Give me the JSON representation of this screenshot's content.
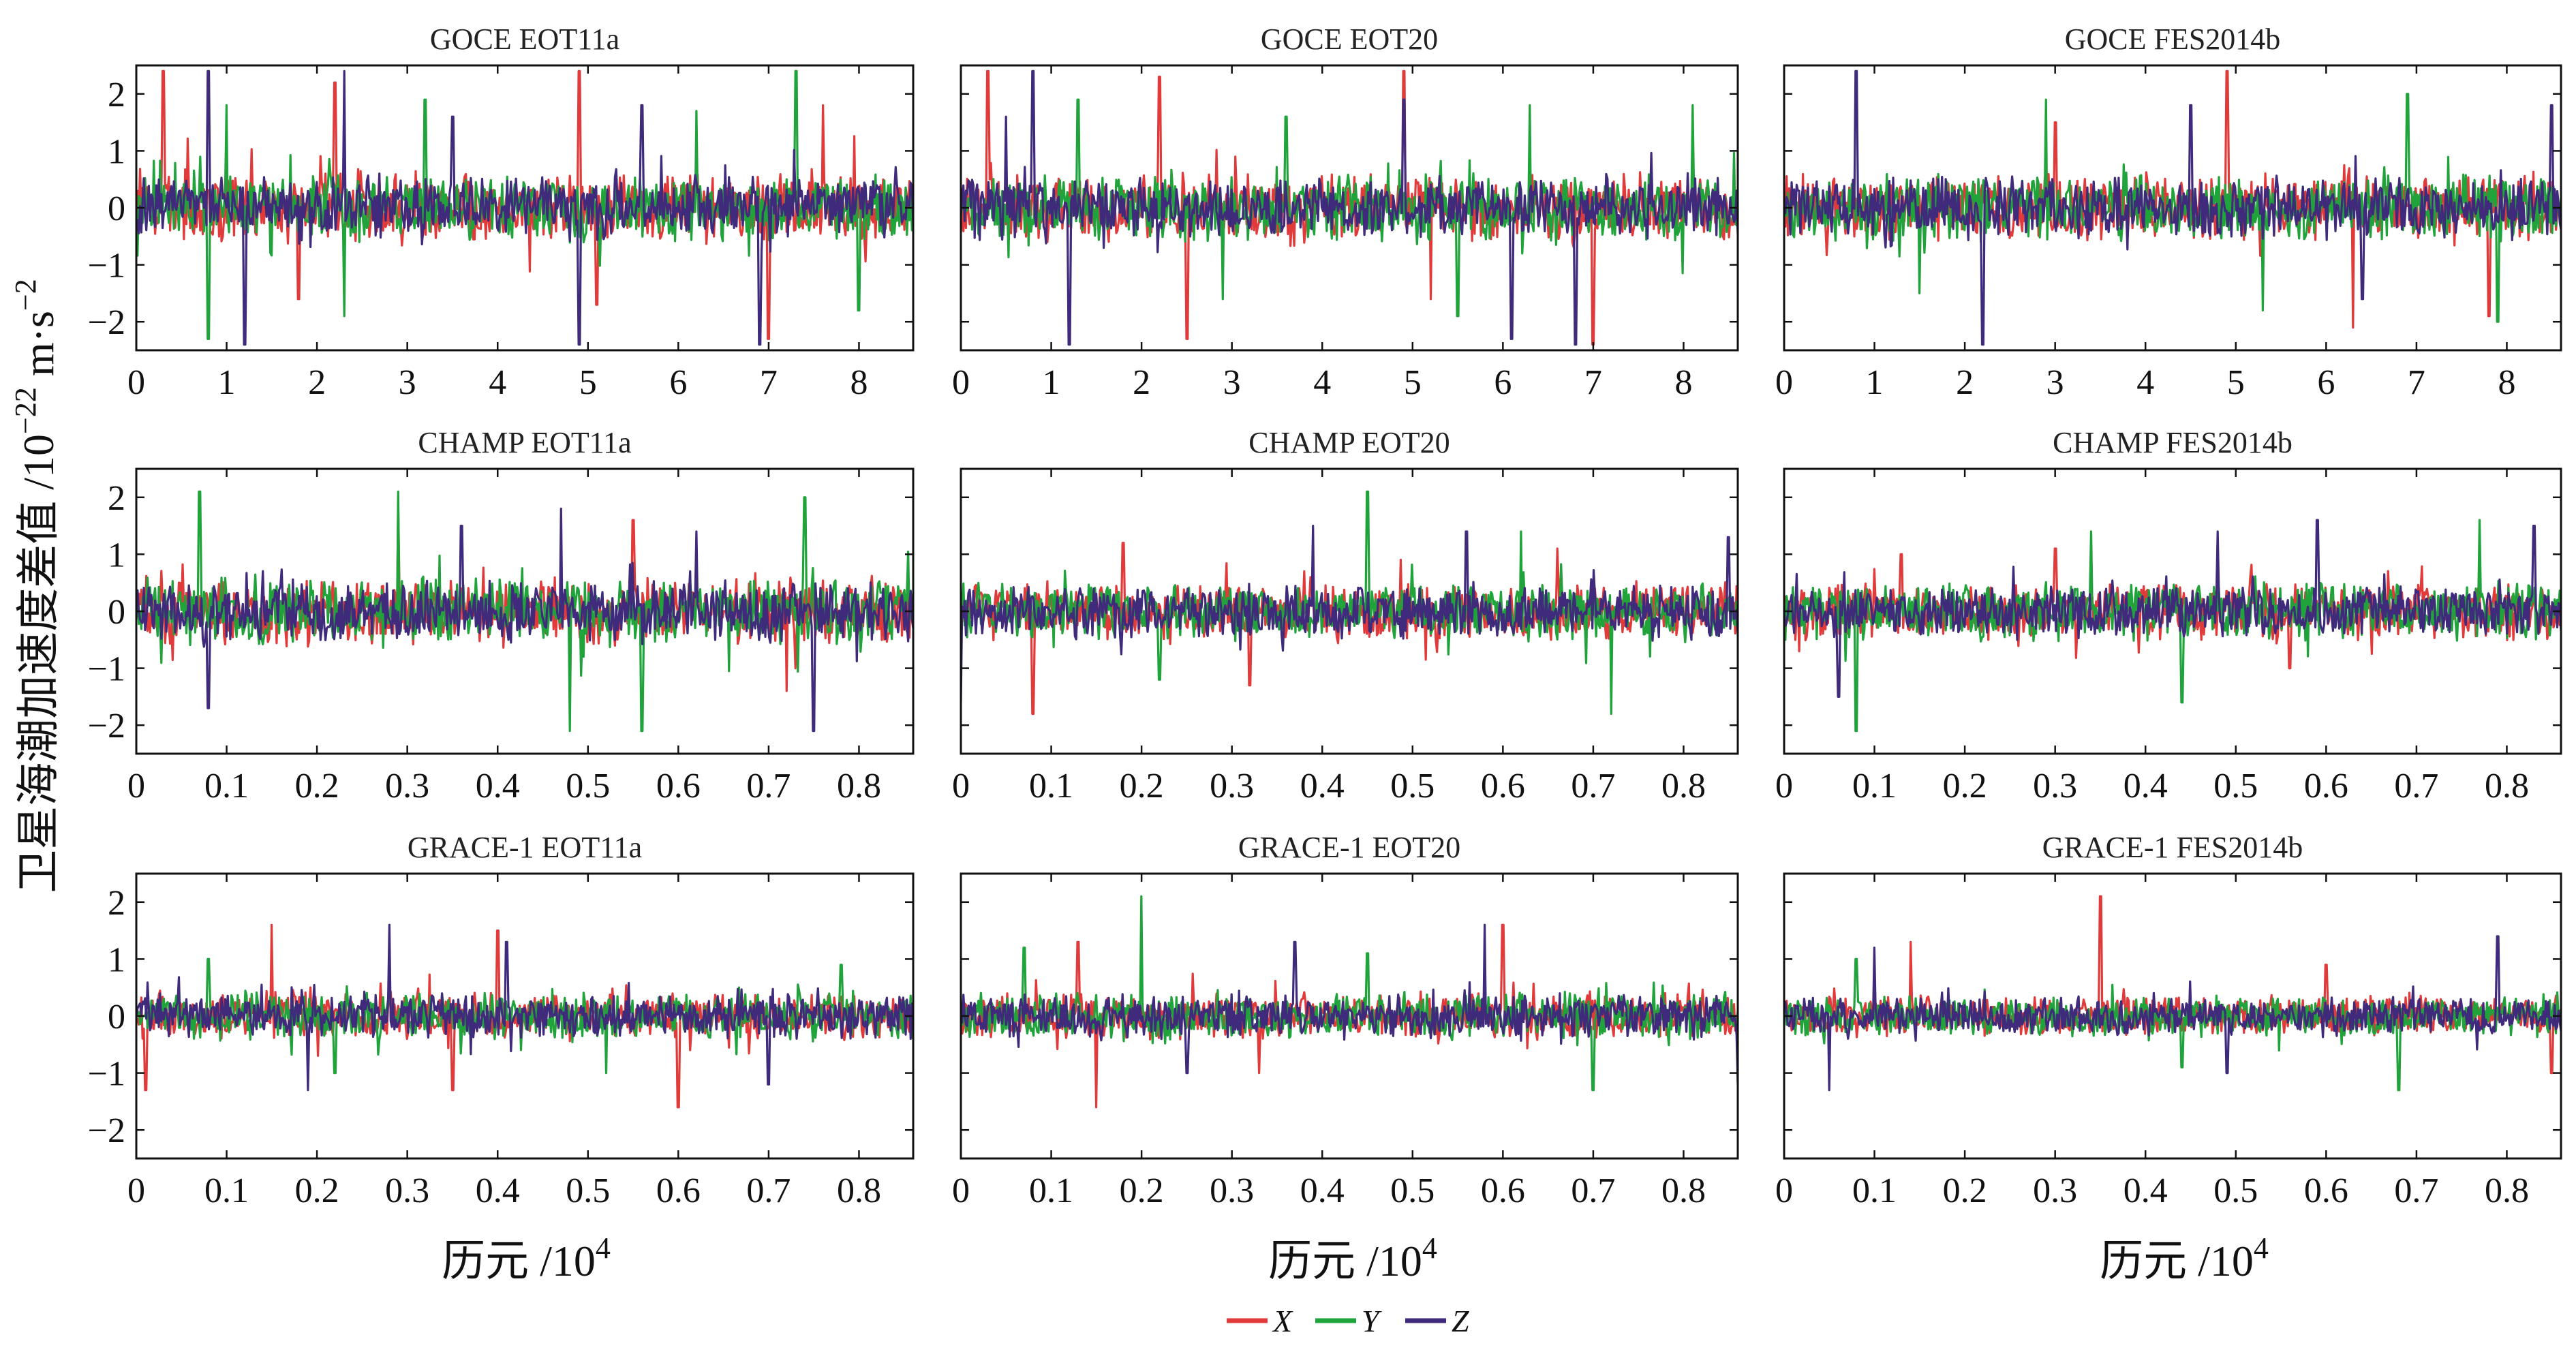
{
  "colors": {
    "X": "#e03a3a",
    "Y": "#1fa33a",
    "Z": "#3f2a7c"
  },
  "ylabel_text": "卫星海潮加速度差值 /10",
  "ylabel_exp": "−22",
  "ylabel_unit": "m·s",
  "ylabel_unit_exp": "−2",
  "xlabel_text": "历元 /10",
  "xlabel_exp": "4",
  "legend": [
    {
      "key": "X",
      "label": "X"
    },
    {
      "key": "Y",
      "label": "Y"
    },
    {
      "key": "Z",
      "label": "Z"
    }
  ],
  "chart_data": [
    {
      "type": "line",
      "title": "GOCE EOT11a",
      "xlim": [
        0,
        8.6
      ],
      "xticks": [
        "0",
        "1",
        "2",
        "3",
        "4",
        "5",
        "6",
        "7",
        "8"
      ],
      "ylim": [
        -2.5,
        2.5
      ],
      "yticks": [
        "−2",
        "−1",
        "0",
        "1",
        "2"
      ],
      "series": [
        {
          "name": "X",
          "noise": 0.55,
          "spikes": [
            [
              0.3,
              2.4
            ],
            [
              2.2,
              2.2
            ],
            [
              4.9,
              2.4
            ],
            [
              7.0,
              -2.3
            ],
            [
              7.6,
              1.8
            ],
            [
              1.8,
              -1.6
            ],
            [
              5.1,
              -1.7
            ]
          ]
        },
        {
          "name": "Y",
          "noise": 0.5,
          "spikes": [
            [
              0.8,
              -2.3
            ],
            [
              1.0,
              1.8
            ],
            [
              3.2,
              1.9
            ],
            [
              7.3,
              2.4
            ],
            [
              8.0,
              -1.8
            ],
            [
              2.3,
              -1.9
            ],
            [
              6.2,
              1.7
            ]
          ]
        },
        {
          "name": "Z",
          "noise": 0.45,
          "spikes": [
            [
              0.8,
              2.4
            ],
            [
              1.2,
              -2.4
            ],
            [
              2.3,
              2.4
            ],
            [
              4.9,
              -2.4
            ],
            [
              6.9,
              -2.4
            ],
            [
              3.5,
              1.6
            ],
            [
              5.6,
              1.8
            ]
          ]
        }
      ]
    },
    {
      "type": "line",
      "title": "GOCE EOT20",
      "xlim": [
        0,
        8.6
      ],
      "xticks": [
        "0",
        "1",
        "2",
        "3",
        "4",
        "5",
        "6",
        "7",
        "8"
      ],
      "ylim": [
        -2.5,
        2.5
      ],
      "yticks": [
        "−2",
        "−1",
        "0",
        "1",
        "2"
      ],
      "series": [
        {
          "name": "X",
          "noise": 0.5,
          "spikes": [
            [
              0.3,
              2.4
            ],
            [
              2.2,
              2.3
            ],
            [
              2.5,
              -2.3
            ],
            [
              4.9,
              2.4
            ],
            [
              7.0,
              -2.4
            ],
            [
              5.2,
              -1.6
            ]
          ]
        },
        {
          "name": "Y",
          "noise": 0.5,
          "spikes": [
            [
              1.3,
              1.9
            ],
            [
              3.6,
              1.6
            ],
            [
              5.5,
              -1.9
            ],
            [
              6.3,
              1.8
            ],
            [
              8.1,
              1.8
            ],
            [
              2.9,
              -1.6
            ]
          ]
        },
        {
          "name": "Z",
          "noise": 0.45,
          "spikes": [
            [
              0.8,
              2.4
            ],
            [
              1.2,
              -2.4
            ],
            [
              4.9,
              1.9
            ],
            [
              6.1,
              -2.3
            ],
            [
              6.8,
              -2.4
            ],
            [
              0.5,
              1.6
            ]
          ]
        }
      ]
    },
    {
      "type": "line",
      "title": "GOCE FES2014b",
      "xlim": [
        0,
        8.6
      ],
      "xticks": [
        "0",
        "1",
        "2",
        "3",
        "4",
        "5",
        "6",
        "7",
        "8"
      ],
      "ylim": [
        -2.5,
        2.5
      ],
      "yticks": [
        "−2",
        "−1",
        "0",
        "1",
        "2"
      ],
      "series": [
        {
          "name": "X",
          "noise": 0.5,
          "spikes": [
            [
              4.9,
              2.4
            ],
            [
              6.3,
              -2.1
            ],
            [
              7.8,
              -1.9
            ],
            [
              3.0,
              1.5
            ]
          ]
        },
        {
          "name": "Y",
          "noise": 0.5,
          "spikes": [
            [
              2.9,
              1.9
            ],
            [
              5.3,
              -1.8
            ],
            [
              6.9,
              2.0
            ],
            [
              7.9,
              -2.0
            ],
            [
              1.5,
              -1.5
            ]
          ]
        },
        {
          "name": "Z",
          "noise": 0.45,
          "spikes": [
            [
              0.8,
              2.4
            ],
            [
              2.2,
              -2.4
            ],
            [
              4.5,
              1.8
            ],
            [
              8.5,
              1.8
            ],
            [
              6.4,
              -1.6
            ]
          ]
        }
      ]
    },
    {
      "type": "line",
      "title": "CHAMP EOT11a",
      "xlim": [
        0,
        0.86
      ],
      "xticks": [
        "0",
        "0.1",
        "0.2",
        "0.3",
        "0.4",
        "0.5",
        "0.6",
        "0.7",
        "0.8"
      ],
      "ylim": [
        -2.5,
        2.5
      ],
      "yticks": [
        "−2",
        "−1",
        "0",
        "1",
        "2"
      ],
      "series": [
        {
          "name": "X",
          "noise": 0.5,
          "spikes": [
            [
              0.29,
              1.9
            ],
            [
              0.48,
              -1.7
            ],
            [
              0.55,
              1.6
            ],
            [
              0.72,
              -1.4
            ]
          ]
        },
        {
          "name": "Y",
          "noise": 0.5,
          "spikes": [
            [
              0.07,
              2.1
            ],
            [
              0.29,
              2.1
            ],
            [
              0.48,
              -2.1
            ],
            [
              0.56,
              -2.1
            ],
            [
              0.74,
              2.0
            ]
          ]
        },
        {
          "name": "Z",
          "noise": 0.45,
          "spikes": [
            [
              0.08,
              -1.7
            ],
            [
              0.36,
              1.5
            ],
            [
              0.47,
              1.8
            ],
            [
              0.75,
              -2.1
            ],
            [
              0.62,
              1.4
            ]
          ]
        }
      ]
    },
    {
      "type": "line",
      "title": "CHAMP EOT20",
      "xlim": [
        0,
        0.86
      ],
      "xticks": [
        "0",
        "0.1",
        "0.2",
        "0.3",
        "0.4",
        "0.5",
        "0.6",
        "0.7",
        "0.8"
      ],
      "ylim": [
        -2.5,
        2.5
      ],
      "yticks": [
        "−2",
        "−1",
        "0",
        "1",
        "2"
      ],
      "series": [
        {
          "name": "X",
          "noise": 0.42,
          "spikes": [
            [
              0.08,
              -1.8
            ],
            [
              0.18,
              1.2
            ],
            [
              0.32,
              -1.3
            ],
            [
              0.66,
              1.1
            ]
          ]
        },
        {
          "name": "Y",
          "noise": 0.42,
          "spikes": [
            [
              0.45,
              2.1
            ],
            [
              0.72,
              -1.8
            ],
            [
              0.62,
              1.4
            ],
            [
              0.22,
              -1.2
            ]
          ]
        },
        {
          "name": "Z",
          "noise": 0.38,
          "spikes": [
            [
              0.0,
              -1.6
            ],
            [
              0.39,
              1.5
            ],
            [
              0.56,
              1.4
            ],
            [
              0.85,
              1.3
            ]
          ]
        }
      ]
    },
    {
      "type": "line",
      "title": "CHAMP FES2014b",
      "xlim": [
        0,
        0.86
      ],
      "xticks": [
        "0",
        "0.1",
        "0.2",
        "0.3",
        "0.4",
        "0.5",
        "0.6",
        "0.7",
        "0.8"
      ],
      "ylim": [
        -2.5,
        2.5
      ],
      "yticks": [
        "−2",
        "−1",
        "0",
        "1",
        "2"
      ],
      "series": [
        {
          "name": "X",
          "noise": 0.42,
          "spikes": [
            [
              0.3,
              1.1
            ],
            [
              0.56,
              -1.0
            ],
            [
              0.13,
              1.0
            ]
          ]
        },
        {
          "name": "Y",
          "noise": 0.42,
          "spikes": [
            [
              0.08,
              -2.1
            ],
            [
              0.34,
              1.4
            ],
            [
              0.44,
              -1.6
            ],
            [
              0.77,
              1.6
            ]
          ]
        },
        {
          "name": "Z",
          "noise": 0.38,
          "spikes": [
            [
              0.06,
              -1.5
            ],
            [
              0.48,
              1.4
            ],
            [
              0.59,
              1.6
            ],
            [
              0.83,
              1.5
            ]
          ]
        }
      ]
    },
    {
      "type": "line",
      "title": "GRACE-1 EOT11a",
      "xlim": [
        0,
        0.86
      ],
      "xticks": [
        "0",
        "0.1",
        "0.2",
        "0.3",
        "0.4",
        "0.5",
        "0.6",
        "0.7",
        "0.8"
      ],
      "ylim": [
        -2.5,
        2.5
      ],
      "yticks": [
        "−2",
        "−1",
        "0",
        "1",
        "2"
      ],
      "series": [
        {
          "name": "X",
          "noise": 0.35,
          "spikes": [
            [
              0.15,
              1.6
            ],
            [
              0.4,
              1.5
            ],
            [
              0.35,
              -1.3
            ],
            [
              0.6,
              -1.6
            ],
            [
              0.01,
              -1.3
            ]
          ]
        },
        {
          "name": "Y",
          "noise": 0.35,
          "spikes": [
            [
              0.08,
              1.0
            ],
            [
              0.22,
              -1.0
            ],
            [
              0.52,
              -1.0
            ],
            [
              0.78,
              0.9
            ]
          ]
        },
        {
          "name": "Z",
          "noise": 0.32,
          "spikes": [
            [
              0.28,
              1.6
            ],
            [
              0.19,
              -1.3
            ],
            [
              0.41,
              1.3
            ],
            [
              0.7,
              -1.2
            ]
          ]
        }
      ]
    },
    {
      "type": "line",
      "title": "GRACE-1 EOT20",
      "xlim": [
        0,
        0.86
      ],
      "xticks": [
        "0",
        "0.1",
        "0.2",
        "0.3",
        "0.4",
        "0.5",
        "0.6",
        "0.7",
        "0.8"
      ],
      "ylim": [
        -2.5,
        2.5
      ],
      "yticks": [
        "−2",
        "−1",
        "0",
        "1",
        "2"
      ],
      "series": [
        {
          "name": "X",
          "noise": 0.35,
          "spikes": [
            [
              0.15,
              -1.6
            ],
            [
              0.6,
              1.6
            ],
            [
              0.13,
              1.3
            ],
            [
              0.33,
              -1.0
            ]
          ]
        },
        {
          "name": "Y",
          "noise": 0.35,
          "spikes": [
            [
              0.2,
              2.1
            ],
            [
              0.07,
              1.2
            ],
            [
              0.7,
              -1.3
            ],
            [
              0.45,
              1.1
            ]
          ]
        },
        {
          "name": "Z",
          "noise": 0.32,
          "spikes": [
            [
              0.37,
              1.3
            ],
            [
              0.58,
              1.6
            ],
            [
              0.86,
              -1.2
            ],
            [
              0.25,
              -1.0
            ]
          ]
        }
      ]
    },
    {
      "type": "line",
      "title": "GRACE-1 FES2014b",
      "xlim": [
        0,
        0.86
      ],
      "xticks": [
        "0",
        "0.1",
        "0.2",
        "0.3",
        "0.4",
        "0.5",
        "0.6",
        "0.7",
        "0.8"
      ],
      "ylim": [
        -2.5,
        2.5
      ],
      "yticks": [
        "−2",
        "−1",
        "0",
        "1",
        "2"
      ],
      "series": [
        {
          "name": "X",
          "noise": 0.3,
          "spikes": [
            [
              0.35,
              2.1
            ],
            [
              0.14,
              1.3
            ],
            [
              0.85,
              -1.0
            ],
            [
              0.6,
              0.9
            ]
          ]
        },
        {
          "name": "Y",
          "noise": 0.3,
          "spikes": [
            [
              0.68,
              -1.3
            ],
            [
              0.08,
              1.0
            ],
            [
              0.44,
              -0.9
            ]
          ]
        },
        {
          "name": "Z",
          "noise": 0.28,
          "spikes": [
            [
              0.1,
              1.2
            ],
            [
              0.05,
              -1.3
            ],
            [
              0.79,
              1.4
            ],
            [
              0.49,
              -1.0
            ]
          ]
        }
      ]
    }
  ]
}
